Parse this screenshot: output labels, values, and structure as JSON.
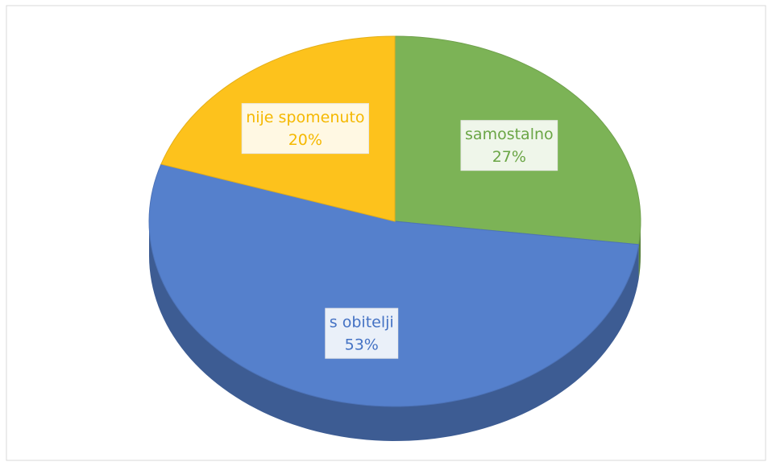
{
  "chart_data": {
    "type": "pie",
    "categories": [
      "samostalno",
      "s obitelji",
      "nije spomenuto"
    ],
    "values": [
      27,
      53,
      20
    ],
    "value_labels": [
      "27%",
      "53%",
      "20%"
    ],
    "colors": [
      "#7cb356",
      "#5580cc",
      "#fdc21c"
    ],
    "label_colors": [
      "#6aa545",
      "#4472c4",
      "#f5b800"
    ]
  }
}
